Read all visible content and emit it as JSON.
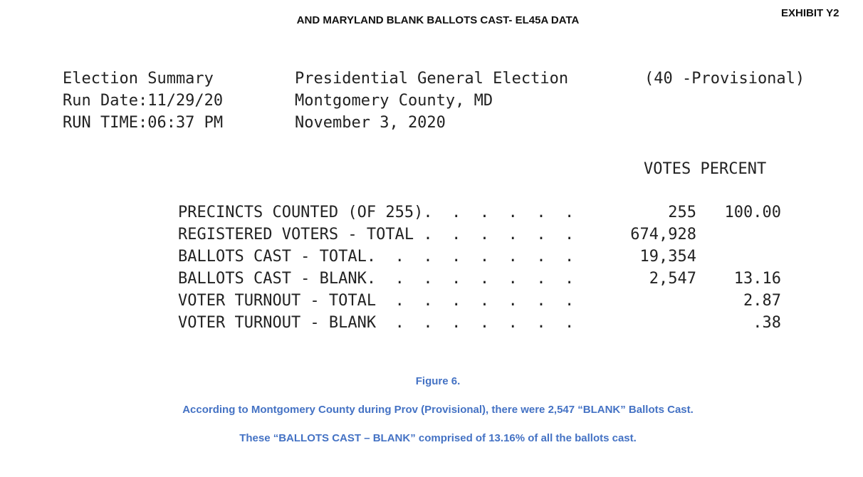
{
  "header": {
    "title": "AND MARYLAND BLANK BALLOTS CAST- EL45A DATA",
    "exhibit": "EXHIBIT Y2"
  },
  "report": {
    "heading": {
      "col1": [
        "Election Summary",
        "Run Date:11/29/20",
        "RUN TIME:06:37 PM"
      ],
      "col2": [
        "Presidential General Election",
        "Montgomery County, MD",
        "November 3, 2020"
      ],
      "col3": "(40 -Provisional)"
    },
    "table": {
      "columns": "VOTES PERCENT",
      "rows": [
        {
          "label": "PRECINCTS COUNTED (OF 255).  .  .  .  .  .",
          "votes": "255",
          "percent": "100.00"
        },
        {
          "label": "REGISTERED VOTERS - TOTAL .  .  .  .  .  .",
          "votes": "674,928",
          "percent": ""
        },
        {
          "label": "BALLOTS CAST - TOTAL.  .  .  .  .  .  .  .",
          "votes": "19,354",
          "percent": ""
        },
        {
          "label": "BALLOTS CAST - BLANK.  .  .  .  .  .  .  .",
          "votes": "2,547",
          "percent": "13.16"
        },
        {
          "label": "VOTER TURNOUT - TOTAL  .  .  .  .  .  .  .",
          "votes": "",
          "percent": "2.87"
        },
        {
          "label": "VOTER TURNOUT - BLANK  .  .  .  .  .  .  .",
          "votes": "",
          "percent": ".38"
        }
      ]
    }
  },
  "caption": {
    "figure": "Figure 6.",
    "line1": "According to Montgomery County during Prov (Provisional), there were 2,547 “BLANK” Ballots Cast.",
    "line2": "These “BALLOTS CAST – BLANK” comprised of 13.16% of all the ballots cast."
  }
}
